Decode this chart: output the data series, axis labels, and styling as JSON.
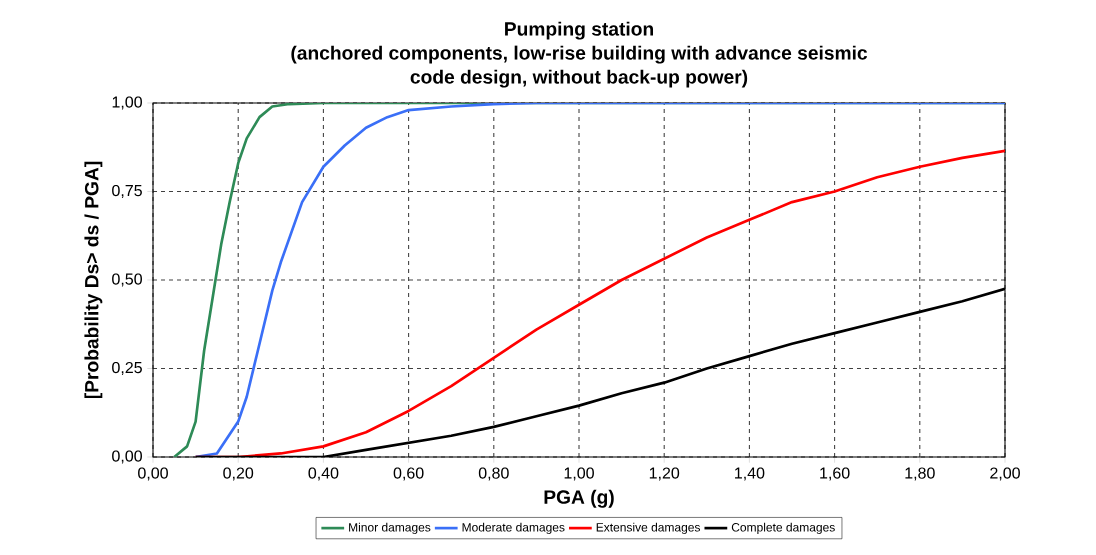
{
  "chart_data": {
    "type": "line",
    "title": "Pumping station\n(anchored components, low-rise building with advance seismic\ncode design, without back-up power)",
    "xlabel": "PGA (g)",
    "ylabel": "[Probability Ds> ds / PGA]",
    "xlim": [
      0,
      2
    ],
    "ylim": [
      0,
      1
    ],
    "xticks": [
      {
        "value": 0,
        "label": "0,00"
      },
      {
        "value": 0.2,
        "label": "0,20"
      },
      {
        "value": 0.4,
        "label": "0,40"
      },
      {
        "value": 0.6,
        "label": "0,60"
      },
      {
        "value": 0.8,
        "label": "0,80"
      },
      {
        "value": 1.0,
        "label": "1,00"
      },
      {
        "value": 1.2,
        "label": "1,20"
      },
      {
        "value": 1.4,
        "label": "1,40"
      },
      {
        "value": 1.6,
        "label": "1,60"
      },
      {
        "value": 1.8,
        "label": "1,80"
      },
      {
        "value": 2.0,
        "label": "2,00"
      }
    ],
    "yticks": [
      {
        "value": 0,
        "label": "0,00"
      },
      {
        "value": 0.25,
        "label": "0,25"
      },
      {
        "value": 0.5,
        "label": "0,50"
      },
      {
        "value": 0.75,
        "label": "0,75"
      },
      {
        "value": 1.0,
        "label": "1,00"
      }
    ],
    "grid": true,
    "legend": "bottom",
    "marker": "none",
    "line_style": "solid",
    "series": [
      {
        "name": "Minor damages",
        "color": "#2e8b57",
        "x": [
          0.05,
          0.08,
          0.1,
          0.12,
          0.14,
          0.16,
          0.18,
          0.2,
          0.22,
          0.25,
          0.28,
          0.32,
          0.4,
          2.0
        ],
        "values": [
          0,
          0.03,
          0.1,
          0.3,
          0.45,
          0.6,
          0.72,
          0.83,
          0.9,
          0.96,
          0.99,
          0.997,
          1,
          1
        ]
      },
      {
        "name": "Moderate damages",
        "color": "#3a6ff7",
        "x": [
          0.1,
          0.15,
          0.2,
          0.22,
          0.25,
          0.28,
          0.3,
          0.35,
          0.4,
          0.45,
          0.5,
          0.55,
          0.6,
          0.7,
          0.8,
          0.9,
          2.0
        ],
        "values": [
          0,
          0.01,
          0.1,
          0.17,
          0.32,
          0.47,
          0.55,
          0.72,
          0.82,
          0.88,
          0.93,
          0.96,
          0.98,
          0.99,
          0.997,
          1,
          1
        ]
      },
      {
        "name": "Extensive damages",
        "color": "#ff0000",
        "x": [
          0.1,
          0.2,
          0.3,
          0.4,
          0.5,
          0.6,
          0.7,
          0.8,
          0.9,
          1.0,
          1.1,
          1.2,
          1.3,
          1.4,
          1.5,
          1.6,
          1.7,
          1.8,
          1.9,
          2.0
        ],
        "values": [
          0,
          0,
          0.01,
          0.03,
          0.07,
          0.13,
          0.2,
          0.28,
          0.36,
          0.43,
          0.5,
          0.56,
          0.62,
          0.67,
          0.72,
          0.75,
          0.79,
          0.82,
          0.845,
          0.865
        ]
      },
      {
        "name": "Complete damages",
        "color": "#000000",
        "x": [
          0.1,
          0.4,
          0.5,
          0.6,
          0.7,
          0.8,
          0.9,
          1.0,
          1.1,
          1.2,
          1.3,
          1.4,
          1.5,
          1.6,
          1.7,
          1.8,
          1.9,
          2.0
        ],
        "values": [
          0,
          0,
          0.02,
          0.04,
          0.06,
          0.085,
          0.115,
          0.145,
          0.18,
          0.21,
          0.25,
          0.285,
          0.32,
          0.35,
          0.38,
          0.41,
          0.44,
          0.475
        ]
      }
    ]
  }
}
